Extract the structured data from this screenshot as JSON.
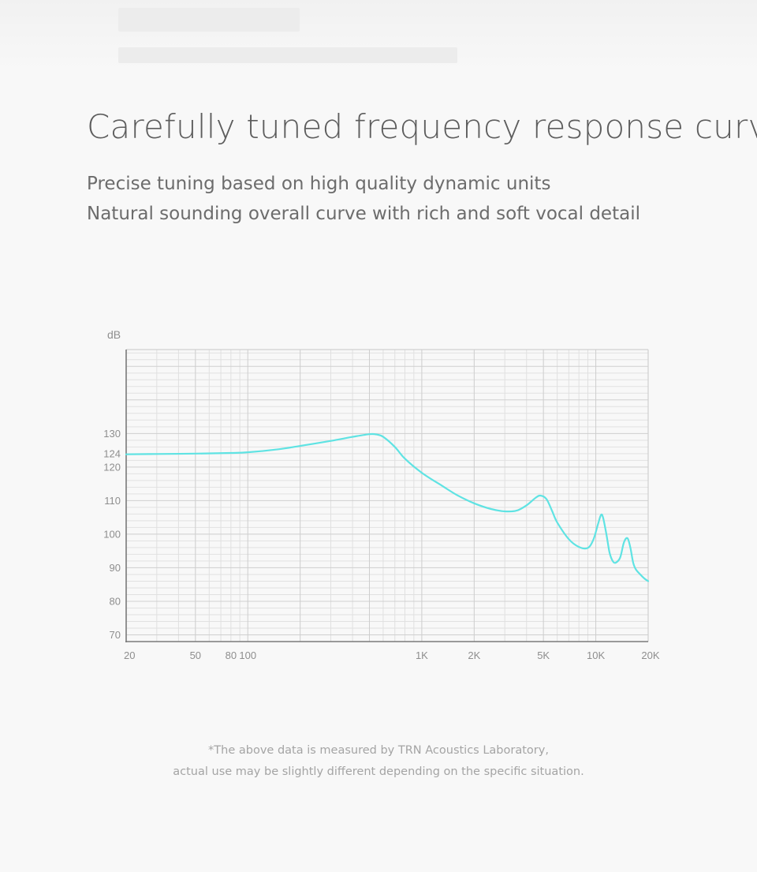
{
  "header": {
    "title": "Carefully tuned frequency response curve",
    "subtitle_lines": [
      "Precise tuning based on high quality dynamic units",
      "Natural sounding overall curve with rich and soft vocal detail"
    ]
  },
  "chart_data": {
    "type": "line",
    "title": "",
    "xlabel": "",
    "ylabel": "dB",
    "x_scale": "log",
    "xlim": [
      20,
      20000
    ],
    "ylim": [
      68,
      155
    ],
    "grid": true,
    "legend": "none",
    "x_tick_labels": [
      {
        "value": 20,
        "label": "20"
      },
      {
        "value": 50,
        "label": "50"
      },
      {
        "value": 80,
        "label": "80"
      },
      {
        "value": 100,
        "label": "100"
      },
      {
        "value": 1000,
        "label": "1K"
      },
      {
        "value": 2000,
        "label": "2K"
      },
      {
        "value": 5000,
        "label": "5K"
      },
      {
        "value": 10000,
        "label": "10K"
      },
      {
        "value": 20000,
        "label": "20K"
      }
    ],
    "y_tick_labels": [
      {
        "value": 130,
        "label": "130"
      },
      {
        "value": 124,
        "label": "124"
      },
      {
        "value": 120,
        "label": "120"
      },
      {
        "value": 110,
        "label": "110"
      },
      {
        "value": 100,
        "label": "100"
      },
      {
        "value": 90,
        "label": "90"
      },
      {
        "value": 80,
        "label": "80"
      },
      {
        "value": 70,
        "label": "70"
      }
    ],
    "series": [
      {
        "color": "#5fe3e3",
        "x": [
          20,
          30,
          50,
          80,
          100,
          150,
          200,
          300,
          400,
          500,
          550,
          600,
          700,
          800,
          1000,
          1300,
          1600,
          2000,
          2500,
          3000,
          3500,
          4000,
          4500,
          4800,
          5200,
          5600,
          6000,
          7000,
          8000,
          9000,
          9700,
          10300,
          10700,
          11000,
          11500,
          12000,
          12500,
          13000,
          13800,
          14500,
          15200,
          15800,
          16400,
          17000,
          18000,
          19000,
          20000
        ],
        "y": [
          123.8,
          123.9,
          124.0,
          124.2,
          124.4,
          125.3,
          126.3,
          127.8,
          129.0,
          129.8,
          129.7,
          129.0,
          126.0,
          122.5,
          118.3,
          114.5,
          111.6,
          109.2,
          107.5,
          106.8,
          107.0,
          108.6,
          110.8,
          111.5,
          110.5,
          107.0,
          103.5,
          98.5,
          96.2,
          95.9,
          98.5,
          103.0,
          105.7,
          105.0,
          100.0,
          94.5,
          92.0,
          91.5,
          93.0,
          97.5,
          98.8,
          96.0,
          91.5,
          89.5,
          88.0,
          86.8,
          86.0
        ]
      }
    ]
  },
  "footnote": {
    "line1": "*The above data is measured by TRN Acoustics Laboratory,",
    "line2": "actual use may be slightly different depending on the specific situation."
  }
}
